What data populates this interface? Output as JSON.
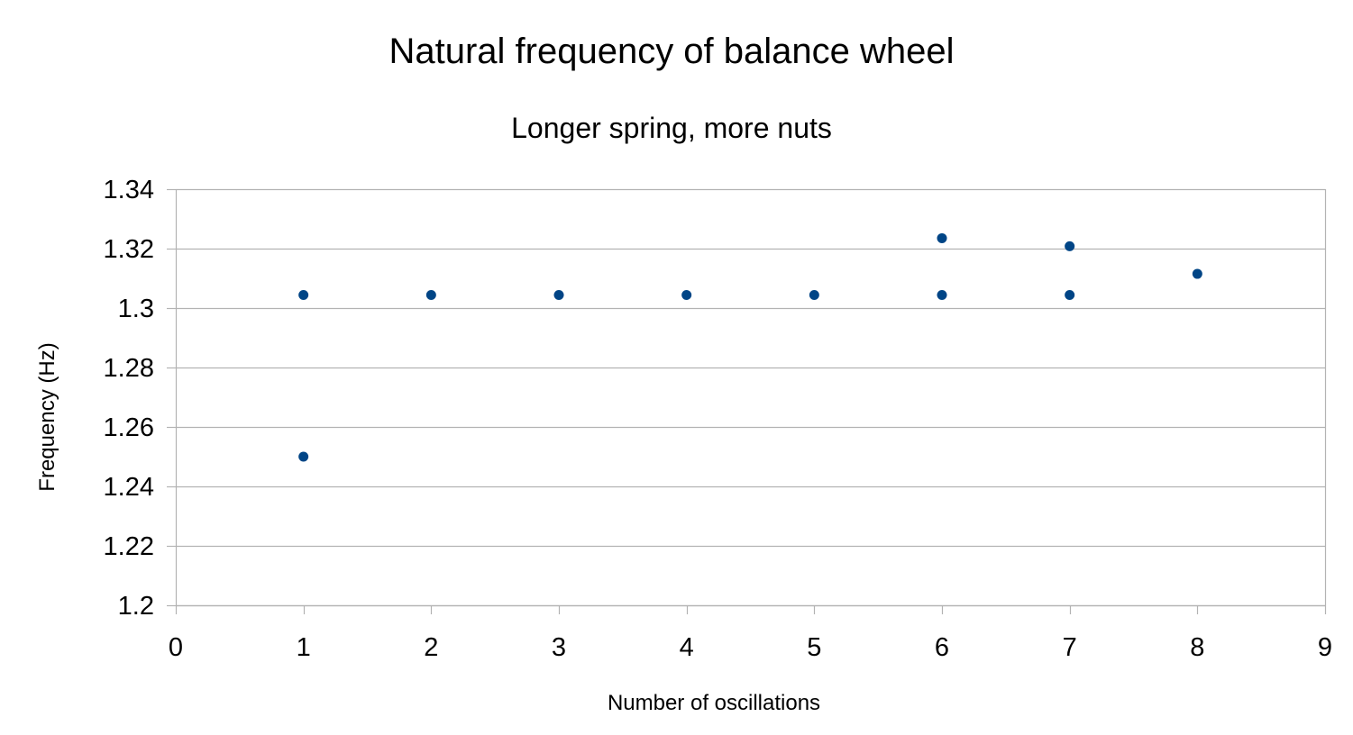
{
  "chart_data": {
    "type": "scatter",
    "title": "Natural frequency of balance wheel",
    "subtitle": "Longer spring, more nuts",
    "xlabel": "Number of oscillations",
    "ylabel": "Frequency (Hz)",
    "xlim": [
      0,
      9
    ],
    "ylim": [
      1.2,
      1.34
    ],
    "x_ticks": [
      "0",
      "1",
      "2",
      "3",
      "4",
      "5",
      "6",
      "7",
      "8",
      "9"
    ],
    "y_ticks": [
      "1.2",
      "1.22",
      "1.24",
      "1.26",
      "1.28",
      "1.3",
      "1.32",
      "1.34"
    ],
    "grid": true,
    "series": [
      {
        "points": [
          {
            "x": 1,
            "y": 1.3044
          },
          {
            "x": 1,
            "y": 1.25
          },
          {
            "x": 2,
            "y": 1.3044
          },
          {
            "x": 3,
            "y": 1.3044
          },
          {
            "x": 4,
            "y": 1.3044
          },
          {
            "x": 5,
            "y": 1.3044
          },
          {
            "x": 6,
            "y": 1.3235
          },
          {
            "x": 6,
            "y": 1.3044
          },
          {
            "x": 7,
            "y": 1.3208
          },
          {
            "x": 7,
            "y": 1.3044
          },
          {
            "x": 8,
            "y": 1.3115
          }
        ],
        "color": "#004586"
      }
    ],
    "colors": {
      "grid": "#b3b3b3",
      "axis": "#b3b3b3",
      "marker": "#004586"
    }
  }
}
